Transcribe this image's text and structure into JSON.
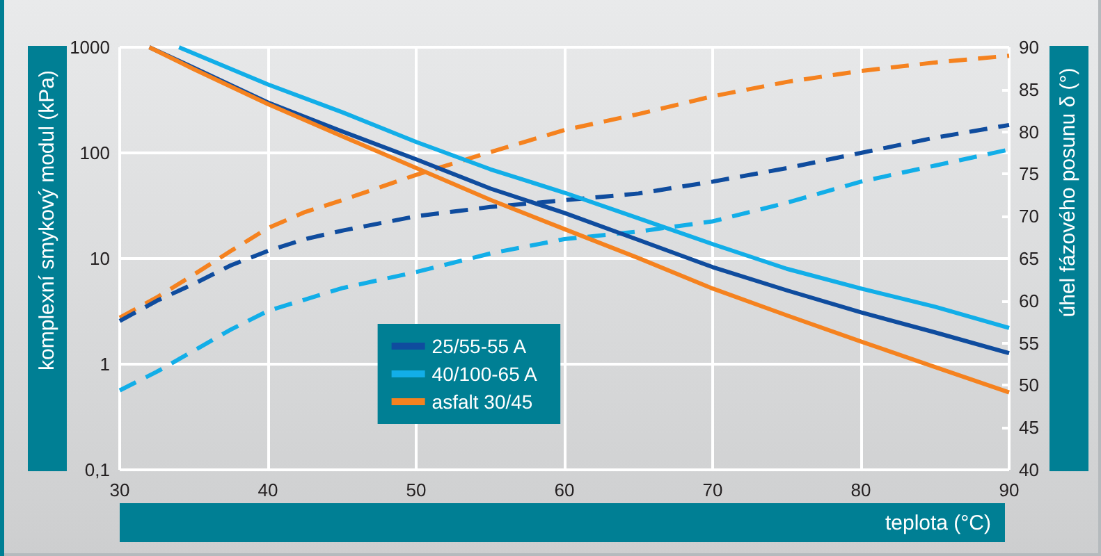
{
  "chart_data": {
    "type": "line",
    "xlabel": "teplota (°C)",
    "ylabel": "komplexní smykový modul (kPa)",
    "y2label": "úhel fázového posunu δ (°)",
    "xlim": [
      30,
      90
    ],
    "xticks": [
      30,
      40,
      50,
      60,
      70,
      80,
      90
    ],
    "ylim": [
      0.1,
      1000
    ],
    "yticks": [
      {
        "value": 0.1,
        "label": "0,1"
      },
      1,
      10,
      100,
      1000
    ],
    "log": "y",
    "y2lim": [
      40,
      90
    ],
    "y2ticks": [
      40,
      45,
      50,
      55,
      60,
      65,
      70,
      75,
      80,
      85,
      90
    ],
    "grid": true,
    "legend": "bottom",
    "marker": "none",
    "series": [
      {
        "name": "25/55-55 A",
        "color": "#0f4c9e",
        "line_style": "solid",
        "x": [
          32,
          35,
          40,
          45,
          50,
          55,
          60,
          65,
          70,
          75,
          80,
          85,
          90
        ],
        "values": [
          1000,
          640,
          300,
          160,
          87,
          46,
          27,
          15,
          8.3,
          5.0,
          3.1,
          2.0,
          1.27
        ]
      },
      {
        "name": "40/100-65 A",
        "color": "#12aee8",
        "line_style": "solid",
        "x": [
          34,
          40,
          45,
          50,
          55,
          60,
          65,
          70,
          75,
          80,
          85,
          90
        ],
        "values": [
          1000,
          445,
          243,
          127,
          70,
          42,
          24,
          13.7,
          8.0,
          5.2,
          3.5,
          2.2
        ]
      },
      {
        "name": "asfalt 30/45",
        "color": "#f5821f",
        "line_style": "solid",
        "x": [
          32,
          35,
          40,
          45,
          50,
          55,
          60,
          65,
          70,
          75,
          80,
          85,
          90
        ],
        "values": [
          1000,
          620,
          290,
          144,
          72,
          36,
          19,
          10.1,
          5.2,
          2.9,
          1.64,
          0.94,
          0.54
        ]
      },
      {
        "color": "#f5821f",
        "line_style": "dashed",
        "axis": "y2",
        "x": [
          30,
          32.5,
          35,
          37.5,
          40,
          42.5,
          45,
          50,
          55,
          60,
          65,
          70,
          75,
          80,
          85,
          90
        ],
        "values": [
          58,
          60.4,
          63.1,
          65.9,
          68.6,
          70.5,
          71.9,
          74.9,
          77.6,
          80.2,
          82.1,
          84.2,
          85.9,
          87.2,
          88.2,
          89
        ]
      },
      {
        "color": "#0f4c9e",
        "line_style": "dashed",
        "axis": "y2",
        "x": [
          30,
          32.5,
          35,
          37.5,
          40,
          42.5,
          45,
          50,
          55,
          60,
          65,
          70,
          75,
          80,
          85,
          90
        ],
        "values": [
          57.6,
          60,
          62,
          64.2,
          65.9,
          67.3,
          68.3,
          70,
          71.1,
          71.9,
          72.7,
          74.1,
          75.7,
          77.5,
          79.3,
          80.8
        ]
      },
      {
        "color": "#12aee8",
        "line_style": "dashed",
        "axis": "y2",
        "x": [
          30,
          32.5,
          35,
          37.5,
          40,
          45,
          50,
          55,
          60,
          65,
          70,
          75,
          80,
          85,
          90
        ],
        "values": [
          49.4,
          51.6,
          54.1,
          56.6,
          58.8,
          61.5,
          63.4,
          65.6,
          67.3,
          68.2,
          69.4,
          71.6,
          74.1,
          76,
          77.9
        ]
      }
    ]
  }
}
